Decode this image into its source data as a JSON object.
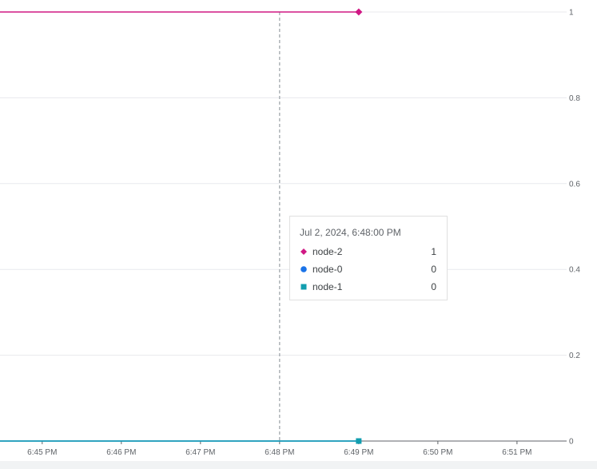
{
  "chart_data": {
    "type": "line",
    "x_ticks": [
      "6:45 PM",
      "6:46 PM",
      "6:47 PM",
      "6:48 PM",
      "6:49 PM",
      "6:50 PM",
      "6:51 PM"
    ],
    "y_ticks": [
      "0",
      "0.2",
      "0.4",
      "0.6",
      "0.8",
      "1"
    ],
    "ylim": [
      0,
      1
    ],
    "xlim": [
      "6:44:28 PM",
      "6:51:34 PM"
    ],
    "grid": true,
    "y_axis_position": "right",
    "series": [
      {
        "name": "node-2",
        "color": "#d01884",
        "marker": "diamond",
        "x": [
          "6:44:28 PM",
          "6:49 PM"
        ],
        "y": [
          1,
          1
        ]
      },
      {
        "name": "node-0",
        "color": "#1a73e8",
        "marker": "circle",
        "x": [
          "6:44:28 PM",
          "6:49 PM"
        ],
        "y": [
          0,
          0
        ]
      },
      {
        "name": "node-1",
        "color": "#129eaf",
        "marker": "square",
        "x": [
          "6:44:28 PM",
          "6:49 PM"
        ],
        "y": [
          0,
          0
        ]
      }
    ],
    "cursor_x": "6:48 PM",
    "tooltip": {
      "title": "Jul 2, 2024, 6:48:00 PM",
      "rows": [
        {
          "name": "node-2",
          "value": "1",
          "color": "#d01884",
          "marker": "diamond"
        },
        {
          "name": "node-0",
          "value": "0",
          "color": "#1a73e8",
          "marker": "circle"
        },
        {
          "name": "node-1",
          "value": "0",
          "color": "#129eaf",
          "marker": "square"
        }
      ]
    }
  }
}
